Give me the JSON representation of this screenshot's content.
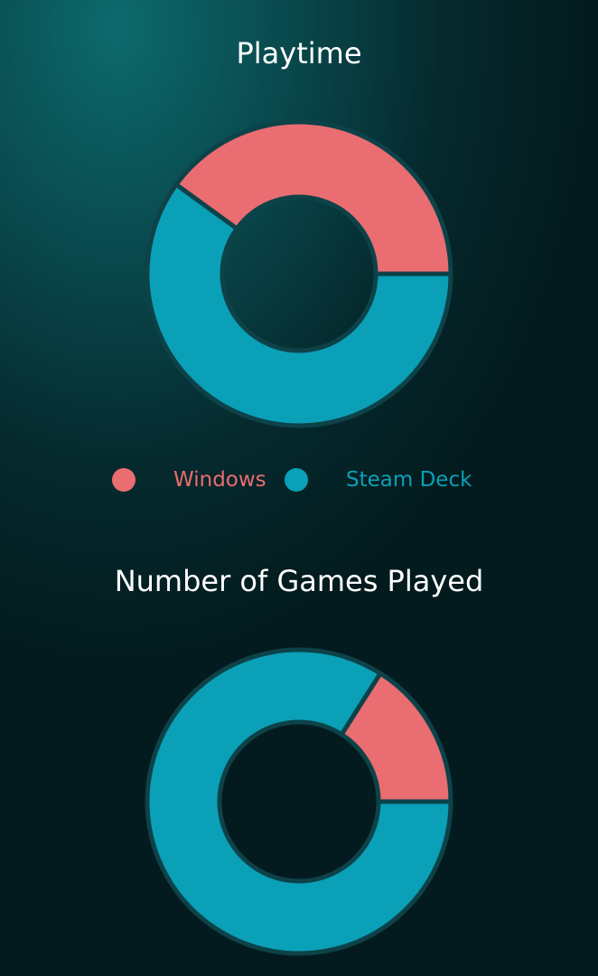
{
  "colors": {
    "Windows": "#e96d71",
    "Steam Deck": "#0aa0b7",
    "outline": "#0d4249"
  },
  "chart_data": [
    {
      "type": "pie",
      "title": "Playtime",
      "categories": [
        "Windows",
        "Steam Deck"
      ],
      "values": [
        40,
        60
      ],
      "units": "percent",
      "donut": true
    },
    {
      "type": "pie",
      "title": "Number of Games Played",
      "categories": [
        "Windows",
        "Steam Deck"
      ],
      "values": [
        16,
        84
      ],
      "units": "percent",
      "donut": true
    }
  ],
  "legend": {
    "items": [
      {
        "label": "Windows"
      },
      {
        "label": "Steam Deck"
      }
    ]
  }
}
